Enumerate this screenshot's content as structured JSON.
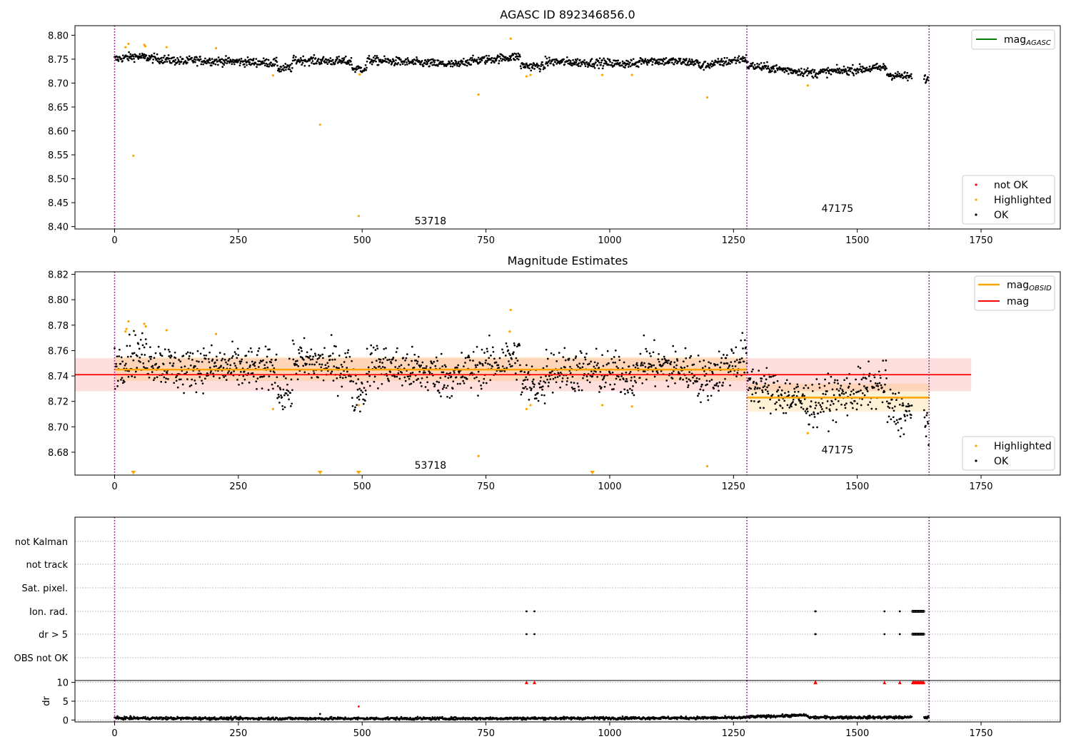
{
  "colors": {
    "ok": "#000000",
    "highlighted": "#ffa500",
    "not_ok": "#ff0000",
    "agasc_line": "#008000",
    "obsid_line": "#ffa500",
    "mag_line": "#ff0000",
    "obs_boundary": "#800080",
    "grid": "#b0b0b0"
  },
  "chart_data": [
    {
      "id": "agasc",
      "type": "scatter",
      "title": "AGASC ID 892346856.0",
      "xlim": [
        -80,
        1910
      ],
      "ylim": [
        8.395,
        8.82
      ],
      "x_ticks": [
        0,
        250,
        500,
        750,
        1000,
        1250,
        1500,
        1750
      ],
      "y_ticks": [
        8.4,
        8.45,
        8.5,
        8.55,
        8.6,
        8.65,
        8.7,
        8.75,
        8.8
      ],
      "y_tick_labels": [
        "8.40",
        "8.45",
        "8.50",
        "8.55",
        "8.60",
        "8.65",
        "8.70",
        "8.75",
        "8.80"
      ],
      "obs_boundaries": [
        0,
        1277,
        1645
      ],
      "obsid_labels": [
        {
          "text": "53718",
          "x": 638,
          "y": 8.405
        },
        {
          "text": "47175",
          "x": 1460,
          "y": 8.431
        }
      ],
      "ok_series": {
        "name": "OK",
        "segments": [
          {
            "x0": 0,
            "x1": 40,
            "level": [
              8.75,
              8.756
            ]
          },
          {
            "x0": 40,
            "x1": 150,
            "level": [
              8.756,
              8.744
            ]
          },
          {
            "x0": 150,
            "x1": 330,
            "level": [
              8.748,
              8.742
            ]
          },
          {
            "x0": 330,
            "x1": 360,
            "level": [
              8.73,
              8.732
            ]
          },
          {
            "x0": 360,
            "x1": 480,
            "level": [
              8.748,
              8.745
            ]
          },
          {
            "x0": 480,
            "x1": 510,
            "level": [
              8.73,
              8.73
            ]
          },
          {
            "x0": 510,
            "x1": 700,
            "level": [
              8.748,
              8.738
            ]
          },
          {
            "x0": 700,
            "x1": 820,
            "level": [
              8.744,
              8.756
            ]
          },
          {
            "x0": 820,
            "x1": 870,
            "level": [
              8.737,
              8.734
            ]
          },
          {
            "x0": 870,
            "x1": 1060,
            "level": [
              8.745,
              8.74
            ]
          },
          {
            "x0": 1060,
            "x1": 1180,
            "level": [
              8.748,
              8.743
            ]
          },
          {
            "x0": 1180,
            "x1": 1277,
            "level": [
              8.735,
              8.752
            ]
          },
          {
            "x0": 1277,
            "x1": 1420,
            "level": [
              8.737,
              8.72
            ]
          },
          {
            "x0": 1420,
            "x1": 1560,
            "level": [
              8.722,
              8.733
            ]
          },
          {
            "x0": 1560,
            "x1": 1645,
            "level": [
              8.718,
              8.708
            ]
          }
        ],
        "gaps": [
          [
            1610,
            1635
          ]
        ]
      },
      "highlighted": {
        "name": "Highlighted",
        "x": [
          22,
          28,
          38,
          60,
          62,
          105,
          205,
          320,
          415,
          493,
          495,
          735,
          800,
          832,
          840,
          985,
          1045,
          1197,
          1400
        ],
        "y": [
          8.775,
          8.782,
          8.548,
          8.78,
          8.777,
          8.775,
          8.773,
          8.716,
          8.613,
          8.422,
          8.718,
          8.676,
          8.793,
          8.714,
          8.717,
          8.717,
          8.717,
          8.67,
          8.695
        ]
      },
      "legends": [
        {
          "position": "top-right",
          "entries": [
            {
              "label": "mag",
              "subscript": "AGASC",
              "kind": "line",
              "color_key": "agasc_line"
            }
          ]
        },
        {
          "position": "bottom-right",
          "entries": [
            {
              "label": "not OK",
              "kind": "dot",
              "color_key": "not_ok"
            },
            {
              "label": "Highlighted",
              "kind": "dot",
              "color_key": "highlighted"
            },
            {
              "label": "OK",
              "kind": "dot",
              "color_key": "ok"
            }
          ]
        }
      ]
    },
    {
      "id": "estimates",
      "type": "scatter",
      "title": "Magnitude Estimates",
      "xlim": [
        -80,
        1910
      ],
      "ylim": [
        8.662,
        8.822
      ],
      "x_ticks": [
        0,
        250,
        500,
        750,
        1000,
        1250,
        1500,
        1750
      ],
      "y_ticks": [
        8.68,
        8.7,
        8.72,
        8.74,
        8.76,
        8.78,
        8.8,
        8.82
      ],
      "y_tick_labels": [
        "8.68",
        "8.70",
        "8.72",
        "8.74",
        "8.76",
        "8.78",
        "8.80",
        "8.82"
      ],
      "obs_boundaries": [
        0,
        1277,
        1645
      ],
      "obsid_labels": [
        {
          "text": "53718",
          "x": 638,
          "y": 8.667
        },
        {
          "text": "47175",
          "x": 1460,
          "y": 8.679
        }
      ],
      "mag": {
        "name": "mag",
        "value": 8.741,
        "band": [
          8.728,
          8.754
        ],
        "x_range": [
          -80,
          1730
        ]
      },
      "mag_obsid": {
        "name": "mag",
        "subscript": "OBSID",
        "segments": [
          {
            "x0": 0,
            "x1": 1277,
            "value": 8.745,
            "band": [
              8.736,
              8.755
            ]
          },
          {
            "x0": 1277,
            "x1": 1645,
            "value": 8.723,
            "band": [
              8.712,
              8.734
            ]
          }
        ]
      },
      "ok_series": {
        "name": "OK",
        "segments": [
          {
            "x0": 0,
            "x1": 40,
            "level": [
              8.748,
              8.758
            ]
          },
          {
            "x0": 40,
            "x1": 150,
            "level": [
              8.758,
              8.742
            ]
          },
          {
            "x0": 150,
            "x1": 330,
            "level": [
              8.748,
              8.744
            ]
          },
          {
            "x0": 330,
            "x1": 360,
            "level": [
              8.728,
              8.73
            ]
          },
          {
            "x0": 360,
            "x1": 480,
            "level": [
              8.752,
              8.746
            ]
          },
          {
            "x0": 480,
            "x1": 510,
            "level": [
              8.728,
              8.729
            ]
          },
          {
            "x0": 510,
            "x1": 700,
            "level": [
              8.75,
              8.738
            ]
          },
          {
            "x0": 700,
            "x1": 820,
            "level": [
              8.742,
              8.756
            ]
          },
          {
            "x0": 820,
            "x1": 870,
            "level": [
              8.735,
              8.732
            ]
          },
          {
            "x0": 870,
            "x1": 1060,
            "level": [
              8.746,
              8.74
            ]
          },
          {
            "x0": 1060,
            "x1": 1180,
            "level": [
              8.75,
              8.743
            ]
          },
          {
            "x0": 1180,
            "x1": 1277,
            "level": [
              8.734,
              8.757
            ]
          },
          {
            "x0": 1277,
            "x1": 1420,
            "level": [
              8.735,
              8.716
            ]
          },
          {
            "x0": 1420,
            "x1": 1560,
            "level": [
              8.72,
              8.734
            ]
          },
          {
            "x0": 1560,
            "x1": 1645,
            "level": [
              8.715,
              8.705
            ]
          }
        ],
        "gaps": [
          [
            1610,
            1635
          ]
        ]
      },
      "highlighted": {
        "name": "Highlighted",
        "x": [
          22,
          24,
          28,
          60,
          63,
          105,
          205,
          320,
          493,
          735,
          798,
          800,
          832,
          840,
          985,
          1045,
          1197,
          1400
        ],
        "y": [
          8.775,
          8.777,
          8.783,
          8.781,
          8.779,
          8.776,
          8.773,
          8.714,
          8.717,
          8.677,
          8.775,
          8.792,
          8.714,
          8.717,
          8.717,
          8.716,
          8.669,
          8.695
        ]
      },
      "off_scale_markers": {
        "x": [
          38,
          415,
          493,
          965
        ],
        "position": "bottom"
      },
      "legends": [
        {
          "position": "top-right",
          "entries": [
            {
              "label": "mag",
              "subscript": "OBSID",
              "kind": "line",
              "color_key": "obsid_line"
            },
            {
              "label": "mag",
              "kind": "line",
              "color_key": "mag_line"
            }
          ]
        },
        {
          "position": "bottom-right",
          "entries": [
            {
              "label": "Highlighted",
              "kind": "dot",
              "color_key": "highlighted"
            },
            {
              "label": "OK",
              "kind": "dot",
              "color_key": "ok"
            }
          ]
        }
      ]
    },
    {
      "id": "flags",
      "type": "scatter",
      "title": "",
      "xlim": [
        -80,
        1910
      ],
      "categories": [
        "not Kalman",
        "not track",
        "Sat. pixel.",
        "Ion. rad.",
        "dr > 5",
        "OBS not OK"
      ],
      "obs_boundaries": [
        0,
        1277,
        1645
      ],
      "flag_points": {
        "Ion. rad.": {
          "x": [
            832,
            848,
            1415,
            1416,
            1555,
            1586
          ],
          "x_dense": [
            1612,
            1635
          ]
        },
        "dr > 5": {
          "x": [
            832,
            848,
            1415,
            1416,
            1555,
            1586
          ],
          "x_dense": [
            1612,
            1635
          ]
        }
      }
    },
    {
      "id": "dr",
      "type": "scatter",
      "title": "",
      "ylabel": "dr",
      "xlim": [
        -80,
        1910
      ],
      "ylim": [
        -0.5,
        10.5
      ],
      "x_ticks": [
        0,
        250,
        500,
        750,
        1000,
        1250,
        1500,
        1750
      ],
      "y_ticks": [
        0,
        5,
        10
      ],
      "y_tick_labels": [
        "0",
        "5",
        "10"
      ],
      "obs_boundaries": [
        0,
        1277,
        1645
      ],
      "ok_series": {
        "name": "OK",
        "segments": [
          {
            "x0": 0,
            "x1": 300,
            "level": [
              0.5,
              0.4
            ]
          },
          {
            "x0": 300,
            "x1": 700,
            "level": [
              0.4,
              0.4
            ]
          },
          {
            "x0": 700,
            "x1": 1277,
            "level": [
              0.4,
              0.6
            ]
          },
          {
            "x0": 1277,
            "x1": 1400,
            "level": [
              0.8,
              1.3
            ]
          },
          {
            "x0": 1400,
            "x1": 1645,
            "level": [
              0.7,
              0.7
            ]
          }
        ],
        "gaps": [
          [
            1610,
            1635
          ]
        ]
      },
      "extra_points": {
        "x": [
          415,
          493
        ],
        "y": [
          1.6,
          3.6
        ]
      },
      "clipped_points": {
        "x": [
          832,
          848,
          1415,
          1416,
          1555,
          1586
        ],
        "x_dense": [
          1612,
          1635
        ],
        "y": 10
      }
    }
  ]
}
